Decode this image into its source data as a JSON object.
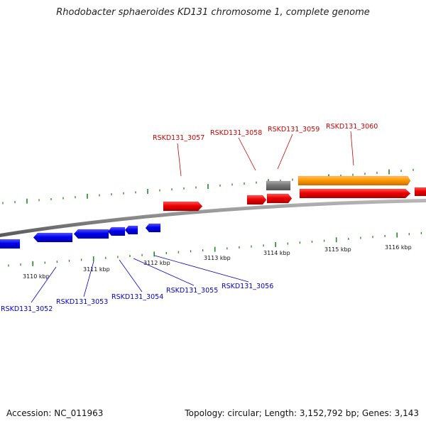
{
  "title": "Rhodobacter sphaeroides KD131 chromosome 1, complete genome",
  "footer": {
    "accession": "Accession: NC_011963",
    "info": "Topology: circular; Length: 3,152,792 bp; Genes: 3,143"
  },
  "colors": {
    "forward_gene": "#ee0000",
    "reverse_gene": "#0000ee",
    "rna_gene": "#ff9900",
    "pseudo_gene": "#777777",
    "backbone": "#888888",
    "tick": "#228822",
    "forward_label": "#cc0000",
    "reverse_label": "#0000cc"
  },
  "scale_labels": [
    "3110 kbp",
    "3111 kbp",
    "3112 kbp",
    "3113 kbp",
    "3114 kbp",
    "3115 kbp",
    "3116 kbp"
  ],
  "forward_genes": [
    "RSKD131_3057",
    "RSKD131_3058",
    "RSKD131_3059",
    "RSKD131_3060"
  ],
  "reverse_genes": [
    "RSKD131_3052",
    "RSKD131_3053",
    "RSKD131_3054",
    "RSKD131_3055",
    "RSKD131_3056"
  ]
}
